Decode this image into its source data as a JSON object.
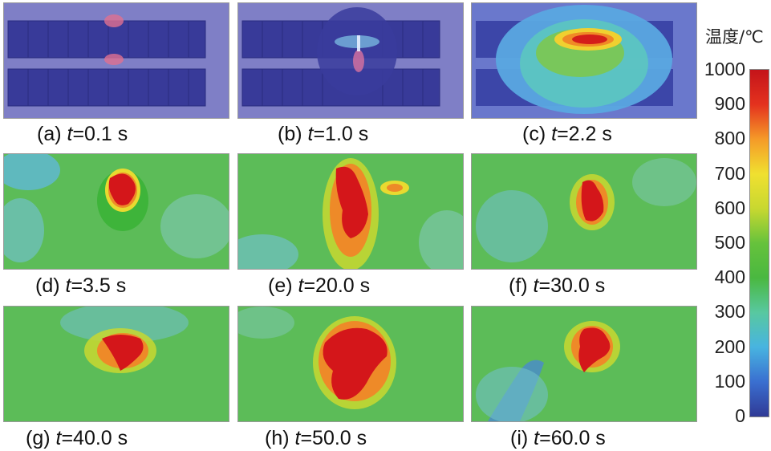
{
  "chart_data": {
    "type": "heatmap",
    "colorbar": {
      "title": "温度/℃",
      "ticks": [
        1000,
        900,
        800,
        700,
        600,
        500,
        400,
        300,
        200,
        100,
        0
      ],
      "range": [
        0,
        1000
      ],
      "colors": [
        "#303a96",
        "#3a6fd0",
        "#48b4e0",
        "#58c8a0",
        "#4ab840",
        "#66c23c",
        "#c8d830",
        "#f0e030",
        "#f59a28",
        "#e4321e",
        "#c4141a"
      ]
    },
    "panels": [
      {
        "label": "(a) ",
        "t_symbol": "t",
        "t_value": "=0.1 s",
        "background_temp": 0,
        "hotspots": [
          {
            "temp": 0,
            "peak": 250
          }
        ]
      },
      {
        "label": "(b) ",
        "t_symbol": "t",
        "t_value": "=1.0 s",
        "background_temp": 0,
        "hotspots": [
          {
            "temp": 0,
            "peak": 300
          }
        ]
      },
      {
        "label": "(c) ",
        "t_symbol": "t",
        "t_value": "=2.2 s",
        "background_temp": 250,
        "hotspots": [
          {
            "temp": 250,
            "peak": 1000
          }
        ]
      },
      {
        "label": "(d) ",
        "t_symbol": "t",
        "t_value": "=3.5 s",
        "background_temp": 500,
        "hotspots": [
          {
            "temp": 500,
            "peak": 1000
          }
        ]
      },
      {
        "label": "(e) ",
        "t_symbol": "t",
        "t_value": "=20.0 s",
        "background_temp": 550,
        "hotspots": [
          {
            "temp": 550,
            "peak": 1000
          }
        ]
      },
      {
        "label": "(f) ",
        "t_symbol": "t",
        "t_value": "=30.0 s",
        "background_temp": 550,
        "hotspots": [
          {
            "temp": 550,
            "peak": 1000
          }
        ]
      },
      {
        "label": "(g) ",
        "t_symbol": "t",
        "t_value": "=40.0 s",
        "background_temp": 550,
        "hotspots": [
          {
            "temp": 550,
            "peak": 1000
          }
        ]
      },
      {
        "label": "(h) ",
        "t_symbol": "t",
        "t_value": "=50.0 s",
        "background_temp": 600,
        "hotspots": [
          {
            "temp": 600,
            "peak": 1000
          }
        ]
      },
      {
        "label": "(i) ",
        "t_symbol": "t",
        "t_value": "=60.0 s",
        "background_temp": 550,
        "hotspots": [
          {
            "temp": 550,
            "peak": 1000
          }
        ]
      }
    ]
  }
}
